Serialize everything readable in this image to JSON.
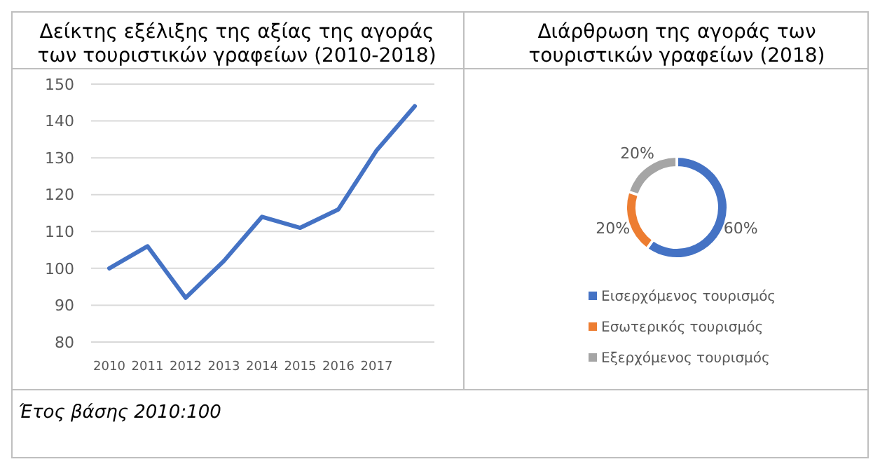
{
  "chart_data": [
    {
      "type": "line",
      "title": "Δείκτης εξέλιξης της αξίας της αγοράς των τουριστικών γραφείων (2010-2018)",
      "categories": [
        "2010",
        "2011",
        "2012",
        "2013",
        "2014",
        "2015",
        "2016",
        "2017",
        null
      ],
      "series": [
        {
          "color": "#4472c4",
          "values": [
            100,
            106,
            92,
            102,
            114,
            111,
            116,
            132,
            144
          ]
        }
      ],
      "ylim": [
        80,
        150
      ],
      "yticks": [
        80,
        90,
        100,
        110,
        120,
        130,
        140,
        150
      ],
      "grid": "y",
      "annotations": [
        "Έτος βάσης 2010:100"
      ]
    },
    {
      "type": "donut",
      "title": "Διάρθρωση της αγοράς των τουριστικών γραφείων (2018)",
      "categories": [
        "Εισερχόμενος τουρισμός",
        "Εσωτερικός τουρισμός",
        "Εξερχόμενος τουρισμός"
      ],
      "values": [
        60,
        20,
        20
      ],
      "colors": [
        "#4472c4",
        "#ed7d31",
        "#a5a5a5"
      ],
      "value_labels": [
        "60%",
        "20%",
        "20%"
      ],
      "legend": "bottom"
    }
  ]
}
